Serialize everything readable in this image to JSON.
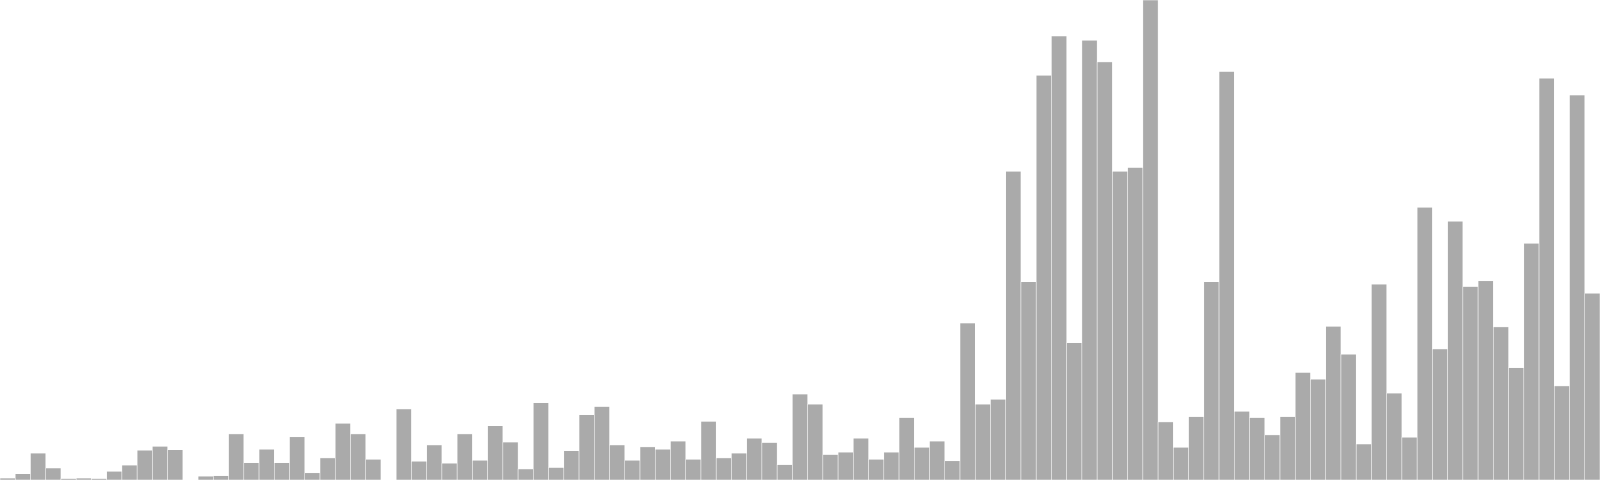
{
  "chart_data": {
    "type": "bar",
    "ylim": [
      0,
      100
    ],
    "grid": false,
    "legend": "none",
    "colors": {
      "bar": "#aaaaaa",
      "bar_edge": "#ffffff",
      "background": "#ffffff"
    },
    "values": [
      0.4,
      1.3,
      5.6,
      2.5,
      0.3,
      0.4,
      0.3,
      1.8,
      3.1,
      6.2,
      7.0,
      6.3,
      0,
      0.8,
      0.9,
      9.6,
      3.6,
      6.4,
      3.6,
      9.0,
      1.5,
      4.6,
      11.8,
      9.6,
      4.3,
      0,
      14.8,
      3.9,
      7.3,
      3.5,
      9.6,
      4.1,
      11.3,
      7.9,
      2.3,
      16.1,
      2.6,
      6.1,
      13.6,
      15.3,
      7.3,
      4.1,
      6.9,
      6.4,
      8.1,
      4.3,
      12.2,
      4.6,
      5.6,
      8.7,
      7.8,
      3.2,
      17.9,
      15.8,
      5.3,
      5.8,
      8.7,
      4.3,
      5.8,
      13.0,
      6.8,
      8.1,
      4.0,
      32.7,
      15.8,
      16.8,
      64.3,
      41.3,
      84.3,
      92.5,
      28.6,
      91.6,
      87.1,
      64.3,
      65.1,
      100.0,
      12.1,
      6.8,
      13.2,
      41.3,
      85.1,
      14.3,
      13.0,
      9.4,
      13.2,
      22.4,
      21.0,
      32.0,
      26.2,
      7.5,
      40.8,
      18.1,
      8.9,
      56.8,
      27.3,
      53.9,
      40.3,
      41.5,
      31.9,
      23.4,
      49.3,
      83.7,
      19.6,
      80.2,
      38.9
    ]
  }
}
